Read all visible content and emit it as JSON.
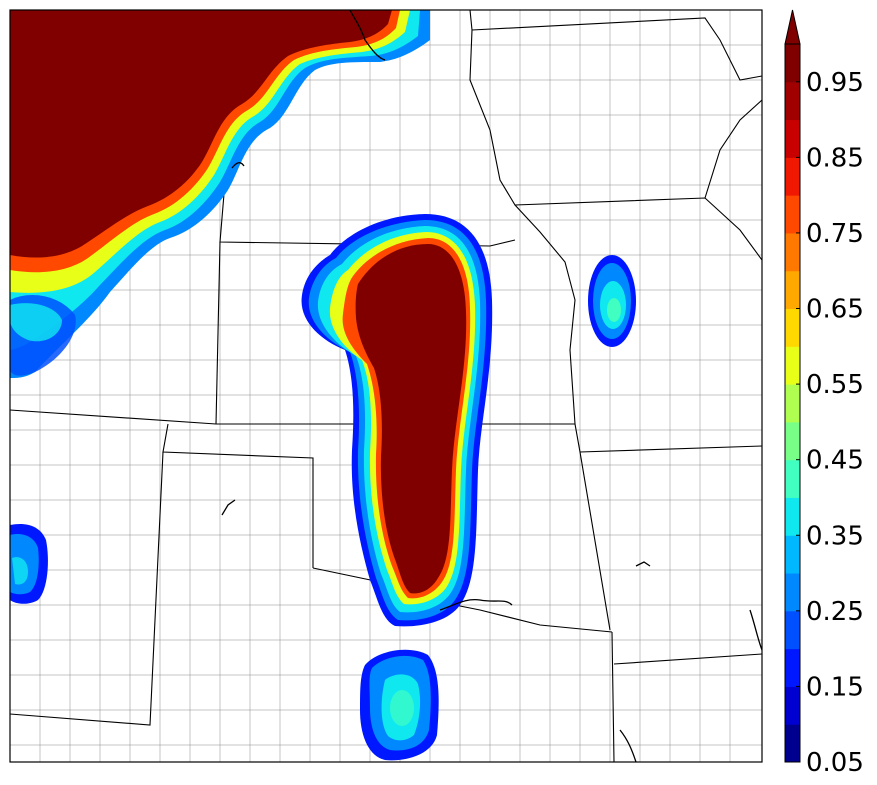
{
  "colorbar": {
    "tick_labels": [
      "0.95",
      "0.85",
      "0.75",
      "0.65",
      "0.55",
      "0.45",
      "0.35",
      "0.25",
      "0.15",
      "0.05"
    ],
    "levels": [
      0.05,
      0.1,
      0.15,
      0.2,
      0.25,
      0.3,
      0.35,
      0.4,
      0.45,
      0.5,
      0.55,
      0.6,
      0.65,
      0.7,
      0.75,
      0.8,
      0.85,
      0.9,
      0.95,
      1.0
    ],
    "colormap": "jet",
    "extend": "max",
    "colors": [
      "#00008f",
      "#0000d0",
      "#0018ff",
      "#0050ff",
      "#0088ff",
      "#00b8ff",
      "#10e8f0",
      "#40ffc0",
      "#78ff88",
      "#b0ff50",
      "#e8ff18",
      "#ffd800",
      "#ffa800",
      "#ff7800",
      "#ff4800",
      "#f01800",
      "#c80000",
      "#a00000",
      "#800000"
    ]
  },
  "map": {
    "region": "Central United States",
    "background_color": "#ffffff",
    "border_color": "#000000"
  }
}
